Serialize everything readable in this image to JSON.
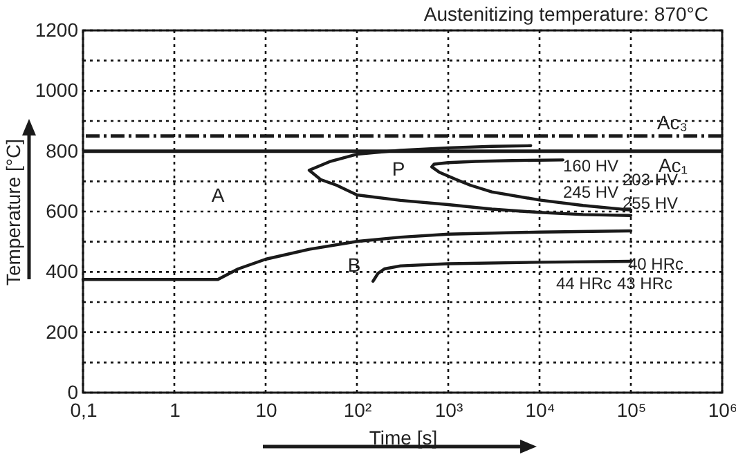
{
  "chart_data": {
    "type": "line",
    "title": "Austenitizing temperature: 870°C",
    "xlabel": "Time [s]",
    "ylabel": "Temperature [°C]",
    "log": "x",
    "xlim": [
      0.1,
      1000000
    ],
    "ylim": [
      0,
      1200
    ],
    "xticks": [
      {
        "value": 0.1,
        "label": "0,1"
      },
      1,
      10,
      {
        "value": 100,
        "label": "10²"
      },
      {
        "value": 1000,
        "label": "10³"
      },
      {
        "value": 10000,
        "label": "10⁴"
      },
      {
        "value": 100000,
        "label": "10⁵"
      },
      {
        "value": 1000000,
        "label": "10⁶"
      }
    ],
    "yticks": [
      0,
      {
        "value": 100,
        "label": null
      },
      200,
      {
        "value": 300,
        "label": null
      },
      400,
      {
        "value": 500,
        "label": null
      },
      600,
      {
        "value": 700,
        "label": null
      },
      800,
      {
        "value": 900,
        "label": null
      },
      1000,
      {
        "value": 1100,
        "label": null
      },
      1200
    ],
    "grid": true,
    "line_style": "solid",
    "marker": "none",
    "series": [
      {
        "color": "#1a1a1a",
        "x": [
          8000,
          3000,
          1000,
          300,
          100,
          50,
          30,
          40,
          60,
          100,
          300,
          1000,
          3000,
          10000,
          30000,
          100000
        ],
        "values": [
          818,
          816,
          811,
          803,
          790,
          765,
          737,
          706,
          687,
          655,
          637,
          623,
          608,
          597,
          590,
          587
        ]
      },
      {
        "color": "#1a1a1a",
        "x": [
          18000,
          5000,
          2000,
          1000,
          700,
          660,
          800,
          1200,
          1750,
          3000,
          10000,
          30000,
          100000
        ],
        "values": [
          771,
          769,
          766,
          762,
          757,
          748,
          730,
          707,
          687,
          665,
          638,
          620,
          605
        ]
      },
      {
        "color": "#1a1a1a",
        "x": [
          0.1,
          1,
          3,
          5,
          10,
          30,
          100,
          300,
          1000,
          10000,
          100000
        ],
        "values": [
          375,
          375,
          375,
          410,
          442,
          475,
          501,
          515,
          525,
          532,
          536
        ]
      },
      {
        "color": "#1a1a1a",
        "x": [
          150,
          170,
          200,
          300,
          1000,
          10000,
          100000
        ],
        "values": [
          369,
          395,
          410,
          420,
          427,
          432,
          435
        ]
      }
    ],
    "ref_lines": [
      {
        "axis": "y",
        "value": 850,
        "label": "Ac₃",
        "line_style": "dashed",
        "color": "#1a1a1a"
      },
      {
        "axis": "y",
        "value": 800,
        "label": "Ac₁",
        "line_style": "solid",
        "color": "#1a1a1a"
      }
    ],
    "annotations": [
      "A",
      "P",
      "B",
      "160 HV",
      "203 HV",
      "245 HV",
      "255 HV",
      "40 HRc",
      "44 HRc",
      "43 HRc"
    ]
  }
}
